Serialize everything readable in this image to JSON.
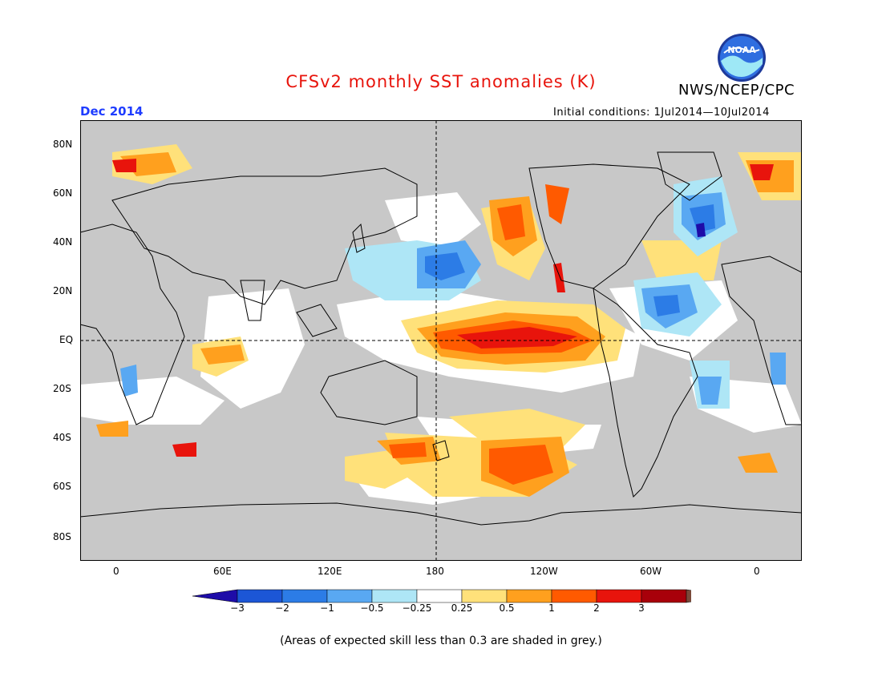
{
  "header": {
    "title": "CFSv2 monthly SST anomalies (K)",
    "agency": "NWS/NCEP/CPC",
    "logo_text": "NOAA",
    "month": "Dec 2014",
    "initial_conditions": "Initial conditions: 1Jul2014—10Jul2014"
  },
  "map": {
    "projection": "equirectangular",
    "central_longitude": 180,
    "lat_labels": [
      "80N",
      "60N",
      "40N",
      "20N",
      "EQ",
      "20S",
      "40S",
      "60S",
      "80S"
    ],
    "lon_labels": [
      "0",
      "60E",
      "120E",
      "180",
      "120W",
      "60W",
      "0"
    ],
    "reference_lines": [
      "equator",
      "dateline"
    ],
    "no_skill_color": "#c8c8c8",
    "ocean_background": "#ffffff"
  },
  "colorbar": {
    "ticks": [
      "−3",
      "−2",
      "−1",
      "−0.5",
      "−0.25",
      "0.25",
      "0.5",
      "1",
      "2",
      "3"
    ],
    "colors": [
      "#1e0ca8",
      "#1c56d6",
      "#2c7ce6",
      "#59a8f2",
      "#aee6f6",
      "#ffffff",
      "#ffe17a",
      "#ffa01e",
      "#ff5a00",
      "#e8140c",
      "#a8000a",
      "#7a4a3a"
    ]
  },
  "footer": "(Areas of expected skill less than 0.3 are shaded in grey.)"
}
